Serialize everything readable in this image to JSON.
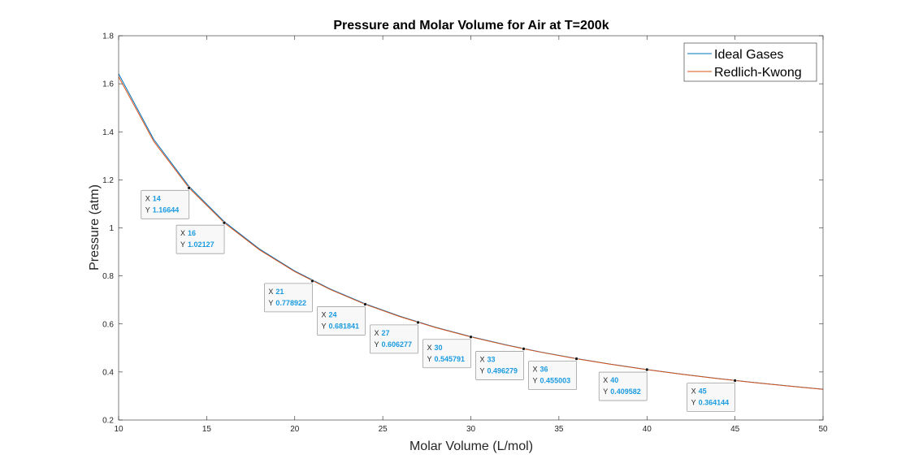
{
  "chart_data": {
    "type": "line",
    "title": "Pressure and Molar Volume for Air at T=200k",
    "xlabel": "Molar Volume (L/mol)",
    "ylabel": "Pressure (atm)",
    "xlim": [
      10,
      50
    ],
    "ylim": [
      0.2,
      1.8
    ],
    "xticks": [
      10,
      15,
      20,
      25,
      30,
      35,
      40,
      45,
      50
    ],
    "xtick_labels": [
      "10",
      "15",
      "20",
      "25",
      "30",
      "35",
      "40",
      "45",
      "50"
    ],
    "yticks": [
      0.2,
      0.4,
      0.6,
      0.8,
      1.0,
      1.2,
      1.4,
      1.6,
      1.8
    ],
    "ytick_labels": [
      "0.2",
      "0.4",
      "0.6",
      "0.8",
      "1",
      "1.2",
      "1.4",
      "1.6",
      "1.8"
    ],
    "grid": false,
    "legend_position": "top-right",
    "series": [
      {
        "name": "Ideal Gases",
        "color": "#0072BD",
        "x": [
          10,
          12,
          14,
          16,
          18,
          20,
          22,
          24,
          26,
          28,
          30,
          32,
          34,
          36,
          38,
          40,
          42,
          44,
          46,
          48,
          50
        ],
        "y": [
          1.6413,
          1.3678,
          1.1724,
          1.0258,
          0.9118,
          0.8207,
          0.7461,
          0.6839,
          0.6313,
          0.5862,
          0.5471,
          0.5129,
          0.4827,
          0.4559,
          0.4319,
          0.4103,
          0.3908,
          0.373,
          0.3568,
          0.3419,
          0.3283
        ]
      },
      {
        "name": "Redlich-Kwong",
        "color": "#D95319",
        "x": [
          10,
          12,
          14,
          16,
          18,
          20,
          22,
          24,
          26,
          28,
          30,
          32,
          34,
          36,
          38,
          40,
          42,
          44,
          46,
          48,
          50
        ],
        "y": [
          1.6293,
          1.3595,
          1.1664,
          1.0213,
          0.9084,
          0.8179,
          0.7439,
          0.6818,
          0.6296,
          0.5847,
          0.5458,
          0.5118,
          0.4818,
          0.455,
          0.4311,
          0.4096,
          0.3902,
          0.3725,
          0.3563,
          0.3415,
          0.3279
        ]
      }
    ],
    "datatips": [
      {
        "x": 14,
        "y": 1.16644,
        "x_text": "14",
        "y_text": "1.16644"
      },
      {
        "x": 16,
        "y": 1.02127,
        "x_text": "16",
        "y_text": "1.02127"
      },
      {
        "x": 21,
        "y": 0.778922,
        "x_text": "21",
        "y_text": "0.778922"
      },
      {
        "x": 24,
        "y": 0.681841,
        "x_text": "24",
        "y_text": "0.681841"
      },
      {
        "x": 27,
        "y": 0.606277,
        "x_text": "27",
        "y_text": "0.606277"
      },
      {
        "x": 30,
        "y": 0.545791,
        "x_text": "30",
        "y_text": "0.545791"
      },
      {
        "x": 33,
        "y": 0.496279,
        "x_text": "33",
        "y_text": "0.496279"
      },
      {
        "x": 36,
        "y": 0.455003,
        "x_text": "36",
        "y_text": "0.455003"
      },
      {
        "x": 40,
        "y": 0.409582,
        "x_text": "40",
        "y_text": "0.409582"
      },
      {
        "x": 45,
        "y": 0.364144,
        "x_text": "45",
        "y_text": "0.364144"
      }
    ],
    "datatip_x_key": "X",
    "datatip_y_key": "Y"
  }
}
